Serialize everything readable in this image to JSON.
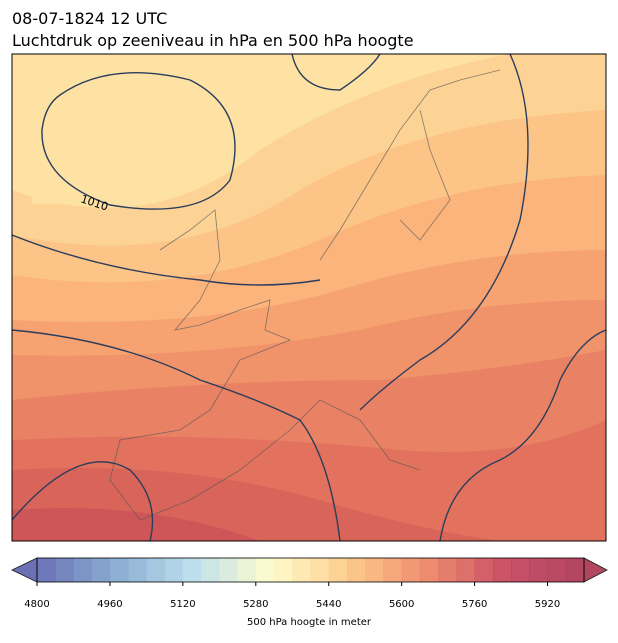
{
  "title_lines": [
    "08-07-1824 12 UTC",
    "Luchtdruk op zeeniveau in hPa en 500 hPa hoogte"
  ],
  "contour_label": "1010",
  "colorbar": {
    "label": "500 hPa hoogte in meter",
    "lim": [
      4800,
      6000
    ],
    "step": 40,
    "ticks": [
      4800,
      4960,
      5120,
      5280,
      5440,
      5600,
      5760,
      5920
    ],
    "colormap": [
      "#5b62ad",
      "#7ea4cd",
      "#b7dceb",
      "#fefcc7",
      "#fcc57f",
      "#ec7f5f",
      "#c43e57",
      "#a8324f"
    ]
  }
}
